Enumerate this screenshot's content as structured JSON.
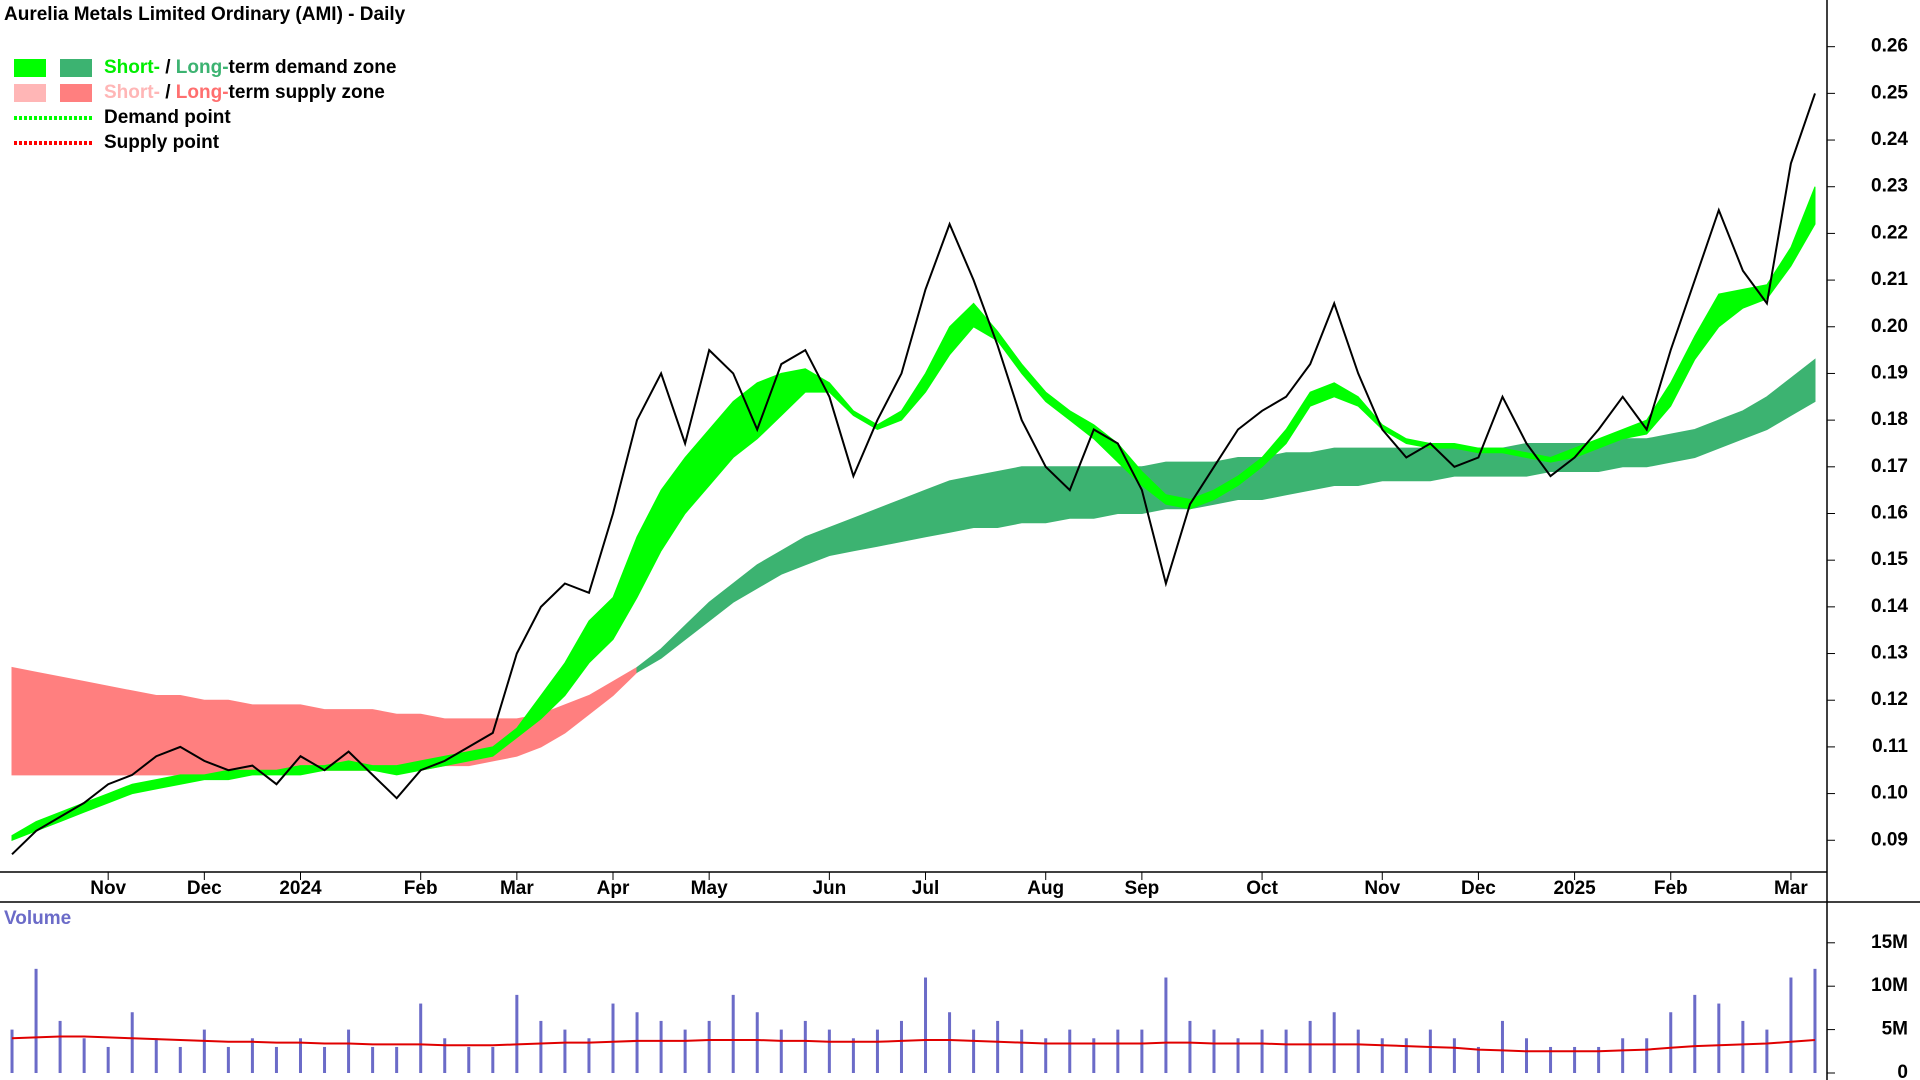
{
  "chart_data": [
    {
      "type": "line",
      "title": "Aurelia Metals Limited Ordinary (AMI) - Daily",
      "legend": [
        {
          "parts": [
            {
              "text": "Short-",
              "color": "#00ee00"
            },
            {
              "text": " / ",
              "color": "#000000"
            },
            {
              "text": "Long-",
              "color": "#3cb371"
            },
            {
              "text": "term demand zone",
              "color": "#000000"
            }
          ],
          "swatches": [
            "#00ff00",
            "#3cb371"
          ]
        },
        {
          "parts": [
            {
              "text": "Short-",
              "color": "#ffb6b6"
            },
            {
              "text": " / ",
              "color": "#000000"
            },
            {
              "text": "Long-",
              "color": "#ff6f6f"
            },
            {
              "text": "term supply zone",
              "color": "#000000"
            }
          ],
          "swatches": [
            "#ffb6b6",
            "#ff7f7f"
          ]
        },
        {
          "parts": [
            {
              "text": "Demand point",
              "color": "#000000"
            }
          ],
          "line": "#00ff00"
        },
        {
          "parts": [
            {
              "text": "Supply point",
              "color": "#000000"
            }
          ],
          "line": "#ff0000"
        }
      ],
      "categories": [
        null,
        null,
        null,
        null,
        "Nov",
        null,
        null,
        null,
        "Dec",
        null,
        null,
        null,
        "2024",
        null,
        null,
        null,
        null,
        "Feb",
        null,
        null,
        null,
        "Mar",
        null,
        null,
        null,
        "Apr",
        null,
        null,
        null,
        "May",
        null,
        null,
        null,
        null,
        "Jun",
        null,
        null,
        null,
        "Jul",
        null,
        null,
        null,
        null,
        "Aug",
        null,
        null,
        null,
        "Sep",
        null,
        null,
        null,
        null,
        "Oct",
        null,
        null,
        null,
        null,
        "Nov",
        null,
        null,
        null,
        "Dec",
        null,
        null,
        null,
        "2025",
        null,
        null,
        null,
        "Feb",
        null,
        null,
        null,
        null,
        "Mar",
        null
      ],
      "series": [
        {
          "color": "#000000",
          "values": [
            0.087,
            0.092,
            0.095,
            0.098,
            0.102,
            0.104,
            0.108,
            0.11,
            0.107,
            0.105,
            0.106,
            0.102,
            0.108,
            0.105,
            0.109,
            0.104,
            0.099,
            0.105,
            0.107,
            0.11,
            0.113,
            0.13,
            0.14,
            0.145,
            0.143,
            0.16,
            0.18,
            0.19,
            0.175,
            0.195,
            0.19,
            0.178,
            0.192,
            0.195,
            0.185,
            0.168,
            0.18,
            0.19,
            0.208,
            0.222,
            0.21,
            0.196,
            0.18,
            0.17,
            0.165,
            0.178,
            0.175,
            0.165,
            0.145,
            0.162,
            0.17,
            0.178,
            0.182,
            0.185,
            0.192,
            0.205,
            0.19,
            0.178,
            0.172,
            0.175,
            0.17,
            0.172,
            0.185,
            0.175,
            0.168,
            0.172,
            0.178,
            0.185,
            0.178,
            0.195,
            0.21,
            0.225,
            0.212,
            0.205,
            0.235,
            0.25
          ]
        }
      ],
      "bands": [
        {
          "color": "#ff7f7f",
          "lower": [
            0.104,
            0.104,
            0.104,
            0.104,
            0.104,
            0.104,
            0.104,
            0.104,
            0.104,
            0.104,
            0.104,
            0.105,
            0.105,
            0.105,
            0.105,
            0.105,
            0.105,
            0.105,
            0.106,
            0.106,
            0.107,
            0.108,
            0.11,
            0.113,
            0.117,
            0.121,
            0.126,
            null,
            null,
            null,
            null,
            null,
            null,
            null,
            null,
            null,
            null,
            null,
            null,
            null,
            null,
            null,
            null,
            null,
            null,
            null,
            null,
            null,
            null,
            null,
            null,
            null,
            null,
            null,
            null,
            null,
            null,
            null,
            null,
            null,
            null,
            null,
            null,
            null,
            null,
            null,
            null,
            null,
            null,
            null,
            null,
            null,
            null,
            null,
            null,
            null
          ],
          "upper": [
            0.127,
            0.126,
            0.125,
            0.124,
            0.123,
            0.122,
            0.121,
            0.121,
            0.12,
            0.12,
            0.119,
            0.119,
            0.119,
            0.118,
            0.118,
            0.118,
            0.117,
            0.117,
            0.116,
            0.116,
            0.116,
            0.116,
            0.117,
            0.119,
            0.121,
            0.124,
            0.127,
            null,
            null,
            null,
            null,
            null,
            null,
            null,
            null,
            null,
            null,
            null,
            null,
            null,
            null,
            null,
            null,
            null,
            null,
            null,
            null,
            null,
            null,
            null,
            null,
            null,
            null,
            null,
            null,
            null,
            null,
            null,
            null,
            null,
            null,
            null,
            null,
            null,
            null,
            null,
            null,
            null,
            null,
            null,
            null,
            null,
            null,
            null,
            null,
            null
          ]
        },
        {
          "color": "#3cb371",
          "lower": [
            null,
            null,
            null,
            null,
            null,
            null,
            null,
            null,
            null,
            null,
            null,
            null,
            null,
            null,
            null,
            null,
            null,
            null,
            null,
            null,
            null,
            null,
            null,
            null,
            null,
            null,
            0.126,
            0.129,
            0.133,
            0.137,
            0.141,
            0.144,
            0.147,
            0.149,
            0.151,
            0.152,
            0.153,
            0.154,
            0.155,
            0.156,
            0.157,
            0.157,
            0.158,
            0.158,
            0.159,
            0.159,
            0.16,
            0.16,
            0.161,
            0.161,
            0.162,
            0.163,
            0.163,
            0.164,
            0.165,
            0.166,
            0.166,
            0.167,
            0.167,
            0.167,
            0.168,
            0.168,
            0.168,
            0.168,
            0.169,
            0.169,
            0.169,
            0.17,
            0.17,
            0.171,
            0.172,
            0.174,
            0.176,
            0.178,
            0.181,
            0.184
          ],
          "upper": [
            null,
            null,
            null,
            null,
            null,
            null,
            null,
            null,
            null,
            null,
            null,
            null,
            null,
            null,
            null,
            null,
            null,
            null,
            null,
            null,
            null,
            null,
            null,
            null,
            null,
            null,
            0.127,
            0.131,
            0.136,
            0.141,
            0.145,
            0.149,
            0.152,
            0.155,
            0.157,
            0.159,
            0.161,
            0.163,
            0.165,
            0.167,
            0.168,
            0.169,
            0.17,
            0.17,
            0.17,
            0.17,
            0.17,
            0.17,
            0.171,
            0.171,
            0.171,
            0.172,
            0.172,
            0.173,
            0.173,
            0.174,
            0.174,
            0.174,
            0.174,
            0.174,
            0.174,
            0.174,
            0.174,
            0.175,
            0.175,
            0.175,
            0.175,
            0.176,
            0.176,
            0.177,
            0.178,
            0.18,
            0.182,
            0.185,
            0.189,
            0.193
          ]
        },
        {
          "color": "#00ff00",
          "lower": [
            0.09,
            0.092,
            0.094,
            0.096,
            0.098,
            0.1,
            0.101,
            0.102,
            0.103,
            0.103,
            0.104,
            0.104,
            0.104,
            0.105,
            0.105,
            0.105,
            0.104,
            0.105,
            0.106,
            0.107,
            0.108,
            0.112,
            0.116,
            0.121,
            0.128,
            0.133,
            0.142,
            0.152,
            0.16,
            0.166,
            0.172,
            0.176,
            0.181,
            0.186,
            0.186,
            0.181,
            0.178,
            0.18,
            0.186,
            0.194,
            0.2,
            0.197,
            0.19,
            0.184,
            0.18,
            0.176,
            0.171,
            0.166,
            0.162,
            0.161,
            0.163,
            0.166,
            0.17,
            0.175,
            0.183,
            0.185,
            0.183,
            0.178,
            0.175,
            0.174,
            0.174,
            0.173,
            0.173,
            0.172,
            0.171,
            0.172,
            0.174,
            0.176,
            0.177,
            0.183,
            0.193,
            0.2,
            0.204,
            0.206,
            0.213,
            0.222
          ],
          "upper": [
            0.091,
            0.094,
            0.096,
            0.098,
            0.1,
            0.102,
            0.103,
            0.104,
            0.104,
            0.105,
            0.105,
            0.105,
            0.106,
            0.106,
            0.107,
            0.106,
            0.106,
            0.107,
            0.108,
            0.109,
            0.11,
            0.114,
            0.121,
            0.128,
            0.137,
            0.142,
            0.155,
            0.165,
            0.172,
            0.178,
            0.184,
            0.188,
            0.19,
            0.191,
            0.188,
            0.182,
            0.179,
            0.182,
            0.19,
            0.2,
            0.205,
            0.199,
            0.192,
            0.186,
            0.182,
            0.179,
            0.175,
            0.169,
            0.164,
            0.163,
            0.165,
            0.168,
            0.172,
            0.178,
            0.186,
            0.188,
            0.185,
            0.179,
            0.176,
            0.175,
            0.175,
            0.174,
            0.174,
            0.173,
            0.172,
            0.174,
            0.176,
            0.178,
            0.18,
            0.188,
            0.198,
            0.207,
            0.208,
            0.209,
            0.217,
            0.23
          ]
        }
      ],
      "ylim": [
        0.0832,
        0.27
      ],
      "yticks": [
        0.09,
        {
          "value": 0.1,
          "label": "0.10"
        },
        0.11,
        0.12,
        0.13,
        0.14,
        0.15,
        0.16,
        0.17,
        0.18,
        0.19,
        {
          "value": 0.2,
          "label": "0.20"
        },
        0.21,
        0.22,
        0.23,
        0.24,
        0.25,
        0.26
      ]
    },
    {
      "type": "bar",
      "title": "Volume",
      "color": "#6b6bc8",
      "values": [
        5000000,
        12000000,
        6000000,
        4000000,
        3000000,
        7000000,
        4000000,
        3000000,
        5000000,
        3000000,
        4000000,
        3000000,
        4000000,
        3000000,
        5000000,
        3000000,
        3000000,
        8000000,
        4000000,
        3000000,
        3000000,
        9000000,
        6000000,
        5000000,
        4000000,
        8000000,
        7000000,
        6000000,
        5000000,
        6000000,
        9000000,
        7000000,
        5000000,
        6000000,
        5000000,
        4000000,
        5000000,
        6000000,
        11000000,
        7000000,
        5000000,
        6000000,
        5000000,
        4000000,
        5000000,
        4000000,
        5000000,
        5000000,
        11000000,
        6000000,
        5000000,
        4000000,
        5000000,
        5000000,
        6000000,
        7000000,
        5000000,
        4000000,
        4000000,
        5000000,
        4000000,
        3000000,
        6000000,
        4000000,
        3000000,
        3000000,
        3000000,
        4000000,
        4000000,
        7000000,
        9000000,
        8000000,
        6000000,
        5000000,
        11000000,
        12000000
      ],
      "line_color": "#e00000",
      "line_values": [
        4000000,
        4100000,
        4200000,
        4200000,
        4100000,
        4000000,
        3900000,
        3800000,
        3700000,
        3600000,
        3600000,
        3500000,
        3500000,
        3400000,
        3400000,
        3300000,
        3300000,
        3300000,
        3200000,
        3200000,
        3200000,
        3300000,
        3400000,
        3500000,
        3500000,
        3600000,
        3700000,
        3700000,
        3700000,
        3800000,
        3800000,
        3800000,
        3700000,
        3700000,
        3600000,
        3600000,
        3600000,
        3700000,
        3800000,
        3800000,
        3700000,
        3600000,
        3500000,
        3400000,
        3400000,
        3400000,
        3400000,
        3400000,
        3500000,
        3500000,
        3400000,
        3400000,
        3400000,
        3300000,
        3300000,
        3300000,
        3300000,
        3200000,
        3100000,
        3000000,
        2900000,
        2700000,
        2600000,
        2500000,
        2500000,
        2500000,
        2500000,
        2600000,
        2700000,
        2900000,
        3100000,
        3200000,
        3300000,
        3400000,
        3600000,
        3800000
      ],
      "ylim": [
        0,
        19700000
      ],
      "yticks": [
        {
          "value": 15000000,
          "label": "15M"
        },
        {
          "value": 10000000,
          "label": "10M"
        },
        {
          "value": 5000000,
          "label": "5M"
        },
        0
      ]
    }
  ]
}
